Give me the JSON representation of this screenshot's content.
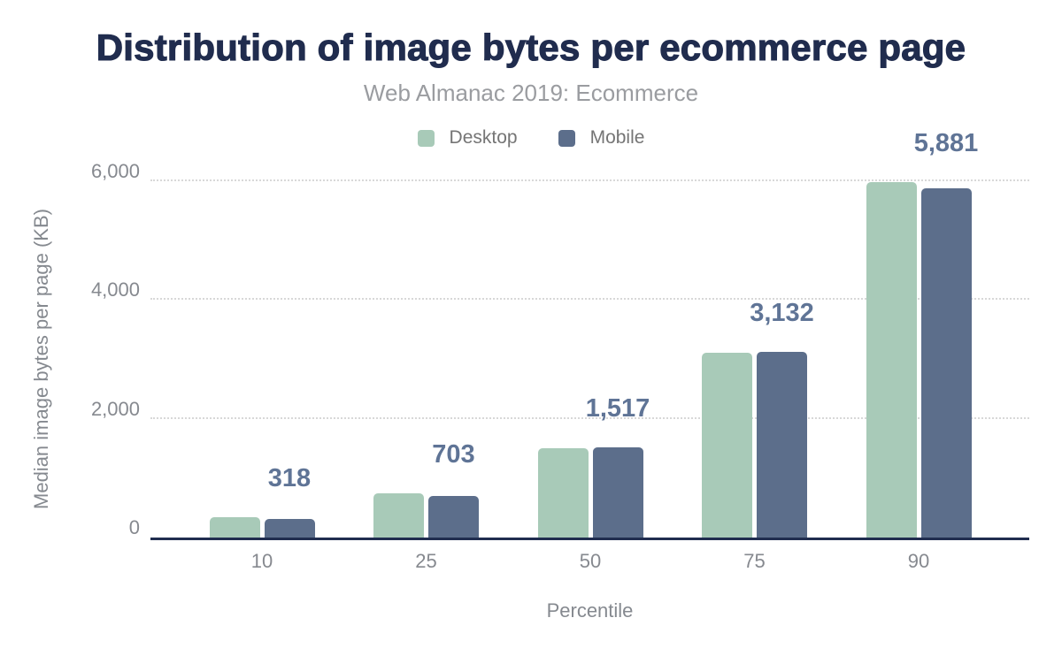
{
  "chart": {
    "title": "Distribution of image bytes per ecommerce page",
    "subtitle": "Web Almanac 2019: Ecommerce",
    "colors": {
      "title_text": "#202c4e",
      "subtitle_text": "#9a9ca0",
      "axis_text": "#86898f",
      "axis_line": "#202d4f",
      "gridline": "#d8d8d8",
      "value_label_text": "#5f7496",
      "desktop_bar": "#a8cab8",
      "mobile_bar": "#5c6e8b",
      "background": "#ffffff"
    }
  },
  "chart_data": {
    "type": "bar",
    "title": "Distribution of image bytes per ecommerce page",
    "subtitle": "Web Almanac 2019: Ecommerce",
    "categories": [
      "10",
      "25",
      "50",
      "75",
      "90"
    ],
    "series": [
      {
        "name": "Desktop",
        "color": "#a8cab8",
        "values": [
          350,
          745,
          1500,
          3110,
          5990
        ],
        "values_note": "estimated from bar heights; not labeled on chart"
      },
      {
        "name": "Mobile",
        "color": "#5c6e8b",
        "values": [
          318,
          703,
          1517,
          3132,
          5881
        ],
        "values_note": "labeled on chart"
      }
    ],
    "value_labels": [
      "318",
      "703",
      "1,517",
      "3,132",
      "5,881"
    ],
    "value_labels_series": "Mobile",
    "xlabel": "Percentile",
    "ylabel": "Median image bytes per page (KB)",
    "ylim": [
      0,
      6000
    ],
    "y_ticks": [
      {
        "value": 0,
        "label": "0"
      },
      {
        "value": 2000,
        "label": "2,000"
      },
      {
        "value": 4000,
        "label": "4,000"
      },
      {
        "value": 6000,
        "label": "6,000"
      }
    ],
    "grid": "horizontal dotted",
    "legend_position": "top-center"
  }
}
